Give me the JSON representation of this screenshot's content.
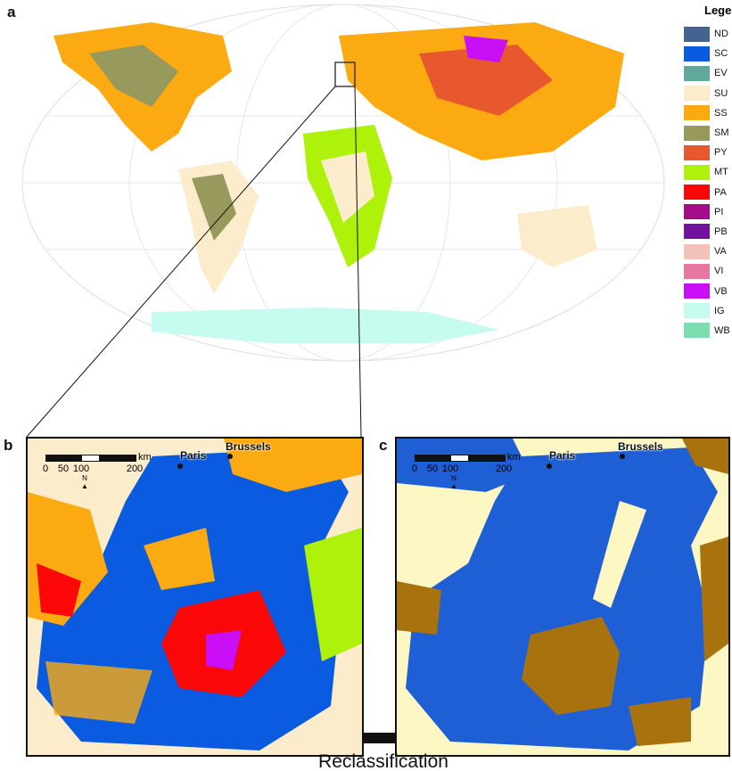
{
  "panels": {
    "a": "a",
    "b": "b",
    "c": "c"
  },
  "legend": {
    "title": "Legend",
    "items": [
      {
        "code": "ND",
        "color": "#44648f"
      },
      {
        "code": "SC",
        "color": "#0a5be0"
      },
      {
        "code": "EV",
        "color": "#5fa89a"
      },
      {
        "code": "SU",
        "color": "#fbeccb"
      },
      {
        "code": "SS",
        "color": "#fbaa12"
      },
      {
        "code": "SM",
        "color": "#979a5c"
      },
      {
        "code": "PY",
        "color": "#e8582e"
      },
      {
        "code": "MT",
        "color": "#aef20c"
      },
      {
        "code": "PA",
        "color": "#fb0707"
      },
      {
        "code": "PI",
        "color": "#a50c8b"
      },
      {
        "code": "PB",
        "color": "#7412a0"
      },
      {
        "code": "VA",
        "color": "#f2c2b9"
      },
      {
        "code": "VI",
        "color": "#e7779f"
      },
      {
        "code": "VB",
        "color": "#c80ff5"
      },
      {
        "code": "IG",
        "color": "#c6fbef"
      },
      {
        "code": "WB",
        "color": "#7dddb0"
      }
    ]
  },
  "cities": {
    "brussels": "Brussels",
    "paris": "Paris"
  },
  "scale_bar": {
    "ticks": [
      "0",
      "50",
      "100",
      "200"
    ],
    "unit": "km"
  },
  "north_label": "N",
  "reclass_colors": {
    "sediment": "#1f5fd6",
    "unconsolidated": "#fdf7c4",
    "other": "#a8720f"
  },
  "arrow_label": "Reclassification"
}
